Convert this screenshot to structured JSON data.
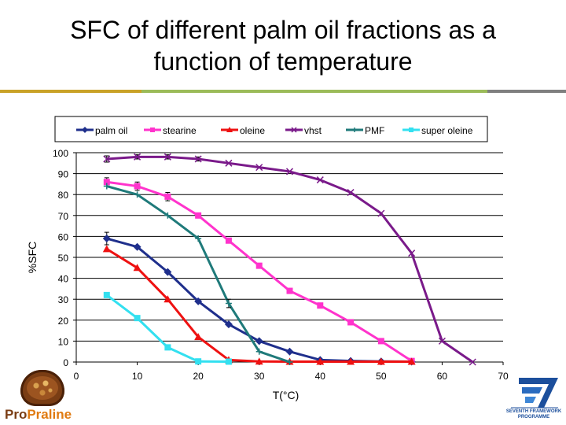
{
  "slide": {
    "title_line1": "SFC of different palm oil fractions as a",
    "title_line2": "function of temperature",
    "rule_colors": [
      "#c9a227",
      "#9bbb59",
      "#7f7f7f"
    ]
  },
  "logos": {
    "left_brand_pro": "Pro",
    "left_brand_praline": "Praline",
    "right_line1": "SEVENTH FRAMEWORK",
    "right_line2": "PROGRAMME"
  },
  "chart_data": {
    "type": "line",
    "title": "",
    "xlabel": "T(°C)",
    "ylabel": "%SFC",
    "xlim": [
      0,
      70
    ],
    "ylim": [
      0,
      100
    ],
    "xticks": [
      0,
      10,
      20,
      30,
      40,
      50,
      60,
      70
    ],
    "yticks": [
      0,
      10,
      20,
      30,
      40,
      50,
      60,
      70,
      80,
      90,
      100
    ],
    "grid": "horizontal",
    "legend": "top",
    "series": [
      {
        "name": "palm oil",
        "color": "#1f2f8c",
        "marker": "diamond",
        "x": [
          5,
          10,
          15,
          20,
          25,
          30,
          35,
          40,
          45,
          50,
          55
        ],
        "y": [
          59,
          55,
          43,
          29,
          18,
          10,
          5,
          1,
          0.5,
          0.3,
          0.2
        ],
        "err": [
          3,
          0,
          0,
          0,
          0,
          0,
          0,
          0,
          0,
          0,
          0
        ]
      },
      {
        "name": "stearine",
        "color": "#ff33cc",
        "marker": "square",
        "x": [
          5,
          10,
          15,
          20,
          25,
          30,
          35,
          40,
          45,
          50,
          55
        ],
        "y": [
          86,
          84,
          79,
          70,
          58,
          46,
          34,
          27,
          19,
          10,
          0.5
        ],
        "err": [
          2,
          2,
          2,
          0,
          0,
          0,
          0,
          0,
          0,
          0,
          0
        ]
      },
      {
        "name": "oleine",
        "color": "#ee1111",
        "marker": "triangle",
        "x": [
          5,
          10,
          15,
          20,
          25,
          30,
          35,
          40,
          45,
          50,
          55
        ],
        "y": [
          54,
          45,
          30,
          12,
          1,
          0.3,
          0.2,
          0.2,
          0.2,
          0.2,
          0.2
        ],
        "err": [
          0,
          0,
          0,
          0,
          0,
          0,
          0,
          0,
          0,
          0,
          0
        ]
      },
      {
        "name": "vhst",
        "color": "#7a1a8a",
        "marker": "x",
        "x": [
          5,
          10,
          15,
          20,
          25,
          30,
          35,
          40,
          45,
          50,
          55,
          60,
          65
        ],
        "y": [
          97,
          98,
          98,
          97,
          95,
          93,
          91,
          87,
          81,
          71,
          52,
          10,
          0
        ],
        "err": [
          1.5,
          1,
          1,
          1,
          0,
          0,
          0,
          0,
          0,
          0,
          0,
          0,
          0
        ]
      },
      {
        "name": "PMF",
        "color": "#1f7a7a",
        "marker": "plus",
        "x": [
          5,
          10,
          15,
          20,
          25,
          30,
          35
        ],
        "y": [
          84,
          80,
          70,
          59,
          28,
          5,
          0
        ],
        "err": [
          0,
          0,
          0,
          0,
          2,
          0,
          0
        ]
      },
      {
        "name": "super oleine",
        "color": "#33e0f0",
        "marker": "square",
        "x": [
          5,
          10,
          15,
          20,
          25
        ],
        "y": [
          32,
          21,
          7,
          0.3,
          0.2
        ],
        "err": [
          0,
          0,
          0,
          0,
          0
        ]
      }
    ]
  }
}
